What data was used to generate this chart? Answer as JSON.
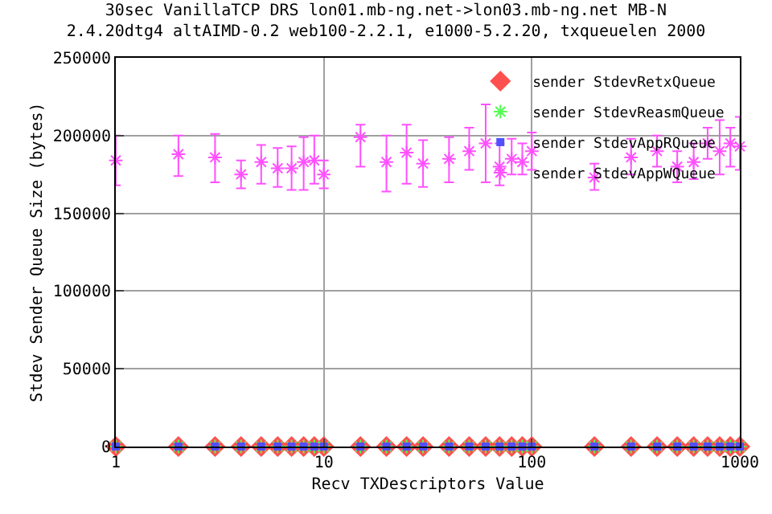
{
  "chart_data": {
    "type": "scatter",
    "title": "30sec VanillaTCP DRS lon01.mb-ng.net->lon03.mb-ng.net MB-N\n2.4.20dtg4 altAIMD-0.2 web100-2.2.1, e1000-5.2.20, txqueuelen 2000",
    "xlabel": "Recv TXDescriptors Value",
    "ylabel": "Stdev Sender Queue Size (bytes)",
    "x": [
      1,
      2,
      3,
      4,
      5,
      6,
      7,
      8,
      9,
      10,
      15,
      20,
      25,
      30,
      40,
      50,
      60,
      70,
      80,
      90,
      100,
      200,
      300,
      400,
      500,
      600,
      700,
      800,
      900,
      1000
    ],
    "series": [
      {
        "name": "sender StdevRetxQueue",
        "color": "#ff5050",
        "marker": "diamond",
        "values": [
          0,
          0,
          0,
          0,
          0,
          0,
          0,
          0,
          0,
          0,
          0,
          0,
          0,
          0,
          0,
          0,
          0,
          0,
          0,
          0,
          0,
          0,
          0,
          0,
          0,
          0,
          0,
          0,
          0,
          0
        ]
      },
      {
        "name": "sender StdevReasmQueue",
        "color": "#50ff50",
        "marker": "cross",
        "values": [
          0,
          0,
          0,
          0,
          0,
          0,
          0,
          0,
          0,
          0,
          0,
          0,
          0,
          0,
          0,
          0,
          0,
          0,
          0,
          0,
          0,
          0,
          0,
          0,
          0,
          0,
          0,
          0,
          0,
          0
        ]
      },
      {
        "name": "sender StdevAppRQueue",
        "color": "#5050ff",
        "marker": "square",
        "values": [
          0,
          0,
          0,
          0,
          0,
          0,
          0,
          0,
          0,
          0,
          0,
          0,
          0,
          0,
          0,
          0,
          0,
          0,
          0,
          0,
          0,
          0,
          0,
          0,
          0,
          0,
          0,
          0,
          0,
          0
        ]
      },
      {
        "name": "sender StdevAppWQueue",
        "color": "#ff50ff",
        "marker": "cross",
        "values": [
          184000,
          188000,
          186000,
          175000,
          183000,
          179000,
          179000,
          183000,
          184000,
          175000,
          199000,
          183000,
          189000,
          182000,
          185000,
          190000,
          195000,
          180000,
          185000,
          183000,
          190000,
          173000,
          186000,
          190000,
          180000,
          183000,
          195000,
          190000,
          195000,
          193000
        ],
        "errors": [
          [
            168000,
            200000
          ],
          [
            174000,
            200000
          ],
          [
            170000,
            201000
          ],
          [
            166000,
            184000
          ],
          [
            169000,
            194000
          ],
          [
            167000,
            192000
          ],
          [
            165000,
            193000
          ],
          [
            165000,
            199000
          ],
          [
            169000,
            200000
          ],
          [
            166000,
            184000
          ],
          [
            180000,
            207000
          ],
          [
            164000,
            200000
          ],
          [
            169000,
            207000
          ],
          [
            167000,
            197000
          ],
          [
            170000,
            199000
          ],
          [
            178000,
            205000
          ],
          [
            170000,
            220000
          ],
          [
            168000,
            195000
          ],
          [
            175000,
            198000
          ],
          [
            175000,
            195000
          ],
          [
            178000,
            202000
          ],
          [
            165000,
            182000
          ],
          [
            175000,
            198000
          ],
          [
            180000,
            200000
          ],
          [
            170000,
            190000
          ],
          [
            172000,
            195000
          ],
          [
            185000,
            205000
          ],
          [
            175000,
            210000
          ],
          [
            180000,
            205000
          ],
          [
            178000,
            212000
          ]
        ]
      }
    ],
    "xlim": [
      1,
      1000
    ],
    "xticks": [
      1,
      10,
      100,
      1000
    ],
    "log": "x",
    "ylim": [
      0,
      250000
    ],
    "yticks": [
      0,
      50000,
      100000,
      150000,
      200000,
      250000
    ],
    "grid": true,
    "legend": "top right"
  }
}
